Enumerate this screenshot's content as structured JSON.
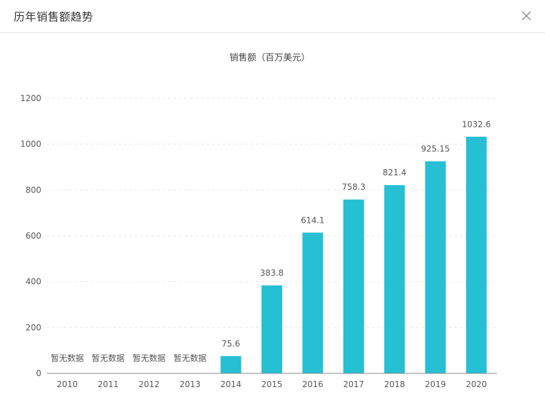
{
  "dialog": {
    "title": "历年销售额趋势",
    "close_icon": "close-icon"
  },
  "colors": {
    "bar": "#26bfd4",
    "axis": "#888888",
    "grid": "#e6e6e6",
    "text": "#555555"
  },
  "chart_data": {
    "type": "bar",
    "title": "销售额（百万美元）",
    "xlabel": "",
    "ylabel": "",
    "categories": [
      "2010",
      "2011",
      "2012",
      "2013",
      "2014",
      "2015",
      "2016",
      "2017",
      "2018",
      "2019",
      "2020"
    ],
    "values": [
      null,
      null,
      null,
      null,
      75.6,
      383.8,
      614.1,
      758.3,
      821.4,
      925.15,
      1032.6
    ],
    "data_labels": [
      "暂无数据",
      "暂无数据",
      "暂无数据",
      "暂无数据",
      "75.6",
      "383.8",
      "614.1",
      "758.3",
      "821.4",
      "925.15",
      "1032.6"
    ],
    "y_ticks": [
      0,
      200,
      400,
      600,
      800,
      1000,
      1200
    ],
    "ylim": [
      0,
      1200
    ],
    "grid": true
  }
}
